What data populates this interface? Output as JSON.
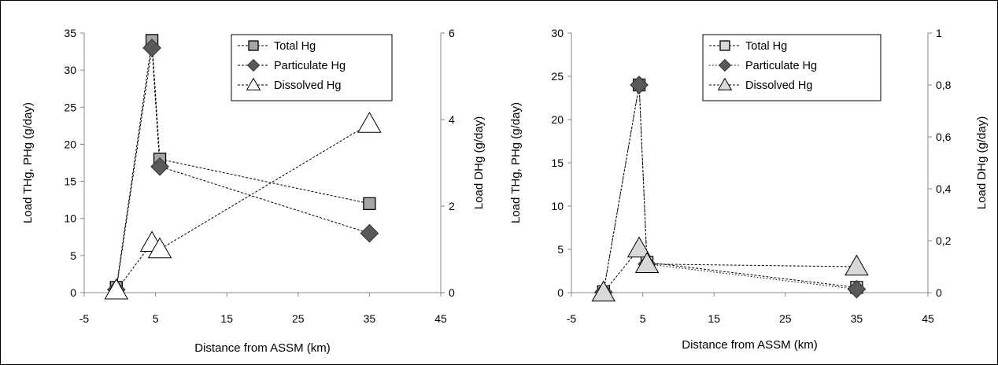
{
  "chart_data": [
    {
      "type": "line",
      "xlabel": "Distance from ASSM (km)",
      "ylabel": "Load THg, PHg (g/day)",
      "y2label": "Load DHg (g/day)",
      "xlim": [
        -5,
        45
      ],
      "ylim": [
        0,
        35
      ],
      "y2lim": [
        0,
        6
      ],
      "xticks": [
        "-5",
        "5",
        "15",
        "25",
        "35",
        "45"
      ],
      "yticks": [
        "0",
        "5",
        "10",
        "15",
        "20",
        "25",
        "30",
        "35"
      ],
      "y2ticks": [
        "0",
        "2",
        "4",
        "6"
      ],
      "legend_position": "top-right",
      "series": [
        {
          "name": "Total Hg",
          "axis": "left",
          "marker": "square",
          "fill": "#a6a6a6",
          "line": "dashed",
          "points": [
            [
              -0.5,
              0.7
            ],
            [
              4.5,
              34
            ],
            [
              5.6,
              18
            ],
            [
              35,
              12
            ]
          ]
        },
        {
          "name": "Particulate Hg",
          "axis": "left",
          "marker": "diamond",
          "fill": "#595959",
          "line": "dashed",
          "points": [
            [
              -0.5,
              0.4
            ],
            [
              4.5,
              33
            ],
            [
              5.6,
              17
            ],
            [
              35,
              8
            ]
          ]
        },
        {
          "name": "Dissolved Hg",
          "axis": "right",
          "marker": "triangle",
          "fill": "#ffffff",
          "line": "dashed",
          "points": [
            [
              -0.5,
              0.05
            ],
            [
              4.5,
              1.15
            ],
            [
              5.6,
              1.0
            ],
            [
              35,
              3.9
            ]
          ]
        }
      ]
    },
    {
      "type": "line",
      "xlabel": "Distance from ASSM (km)",
      "ylabel": "Load THg, PHg (g/day)",
      "y2label": "Load DHg (g/day)",
      "xlim": [
        -5,
        45
      ],
      "ylim": [
        0,
        30
      ],
      "y2lim": [
        0,
        1
      ],
      "xticks": [
        "-5",
        "5",
        "15",
        "25",
        "35",
        "45"
      ],
      "yticks": [
        "0",
        "5",
        "10",
        "15",
        "20",
        "25",
        "30"
      ],
      "y2ticks": [
        "0",
        "0,2",
        "0,4",
        "0,6",
        "0,8",
        "1"
      ],
      "legend_position": "top-right",
      "series": [
        {
          "name": "Total Hg",
          "axis": "left",
          "marker": "square",
          "fill": "#d9d9d9",
          "line": "dashed",
          "points": [
            [
              -0.5,
              0.1
            ],
            [
              4.5,
              24
            ],
            [
              5.6,
              3.5
            ],
            [
              35,
              0.6
            ]
          ]
        },
        {
          "name": "Particulate Hg",
          "axis": "left",
          "marker": "diamond",
          "fill": "#595959",
          "line": "dotted",
          "points": [
            [
              -0.5,
              0.05
            ],
            [
              4.5,
              24
            ],
            [
              5.6,
              3.3
            ],
            [
              35,
              0.4
            ]
          ]
        },
        {
          "name": "Dissolved Hg",
          "axis": "right",
          "marker": "triangle",
          "fill": "#d9d9d9",
          "line": "dashed",
          "points": [
            [
              -0.5,
              0.0
            ],
            [
              4.5,
              0.17
            ],
            [
              5.6,
              0.11
            ],
            [
              35,
              0.1
            ]
          ]
        }
      ]
    }
  ]
}
